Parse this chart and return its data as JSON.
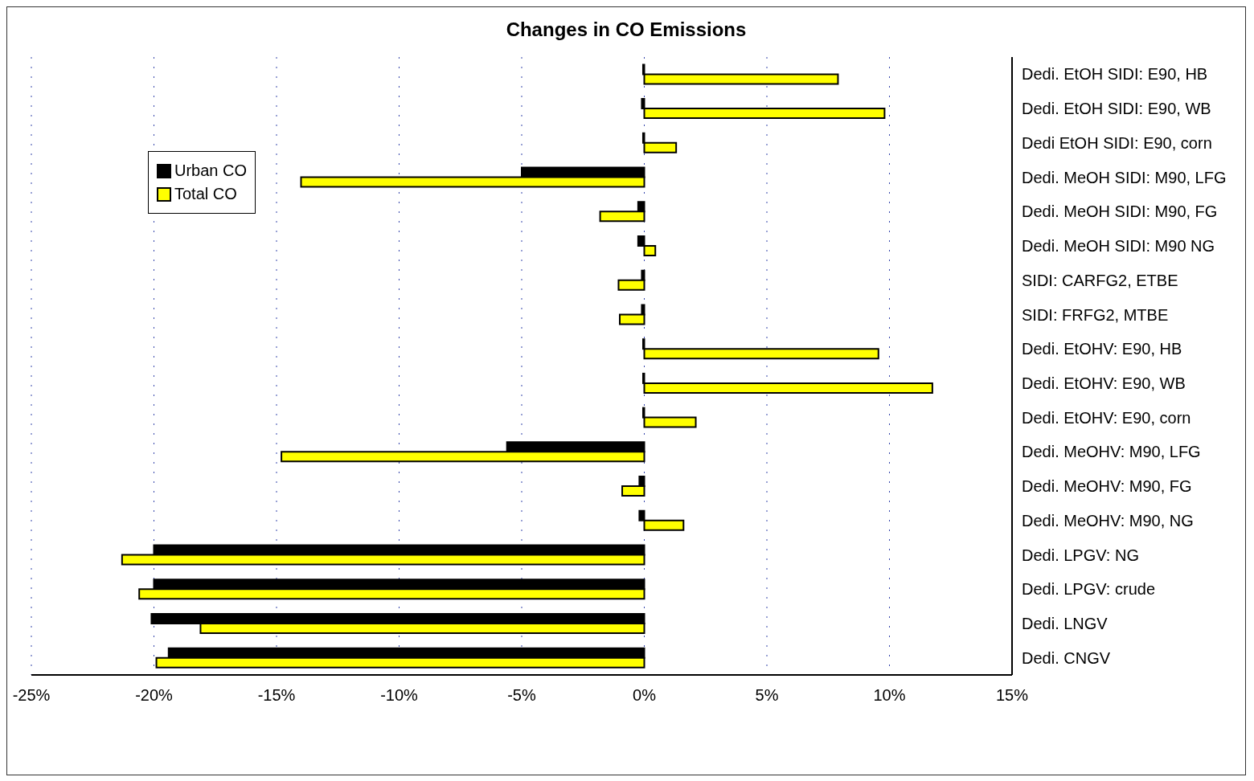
{
  "chart_data": {
    "type": "bar",
    "orientation": "horizontal",
    "title": "Changes in CO Emissions",
    "categories": [
      "Dedi. EtOH SIDI: E90, HB",
      "Dedi. EtOH SIDI: E90, WB",
      "Dedi EtOH SIDI: E90, corn",
      "Dedi. MeOH SIDI: M90, LFG",
      "Dedi. MeOH SIDI: M90, FG",
      "Dedi. MeOH SIDI: M90 NG",
      "SIDI: CARFG2, ETBE",
      "SIDI: FRFG2, MTBE",
      "Dedi. EtOHV: E90, HB",
      "Dedi. EtOHV: E90, WB",
      "Dedi. EtOHV: E90, corn",
      "Dedi. MeOHV: M90, LFG",
      "Dedi. MeOHV: M90, FG",
      "Dedi. MeOHV: M90, NG",
      "Dedi. LPGV: NG",
      "Dedi. LPGV: crude",
      "Dedi. LNGV",
      "Dedi. CNGV"
    ],
    "series": [
      {
        "name": "Urban CO",
        "color": "#000000",
        "values": [
          -0.05,
          -0.1,
          -0.05,
          -5.0,
          -0.25,
          -0.25,
          -0.1,
          -0.1,
          -0.05,
          -0.05,
          -0.05,
          -5.6,
          -0.2,
          -0.2,
          -20.0,
          -20.0,
          -20.1,
          -19.4
        ]
      },
      {
        "name": "Total CO",
        "color": "#ffff00",
        "values": [
          7.9,
          9.8,
          1.3,
          -14.0,
          -1.8,
          0.45,
          -1.05,
          -1.0,
          9.55,
          11.75,
          2.1,
          -14.8,
          -0.9,
          1.6,
          -21.3,
          -20.6,
          -18.1,
          -19.9
        ]
      }
    ],
    "xlim": [
      -25,
      15
    ],
    "xticks": [
      {
        "value": -25,
        "label": "-25%"
      },
      {
        "value": -20,
        "label": "-20%"
      },
      {
        "value": -15,
        "label": "-15%"
      },
      {
        "value": -10,
        "label": "-10%"
      },
      {
        "value": -5,
        "label": "-5%"
      },
      {
        "value": 0,
        "label": "0%"
      },
      {
        "value": 5,
        "label": "5%"
      },
      {
        "value": 10,
        "label": "10%"
      },
      {
        "value": 15,
        "label": "15%"
      }
    ],
    "grid": "x",
    "legend": "top left"
  }
}
